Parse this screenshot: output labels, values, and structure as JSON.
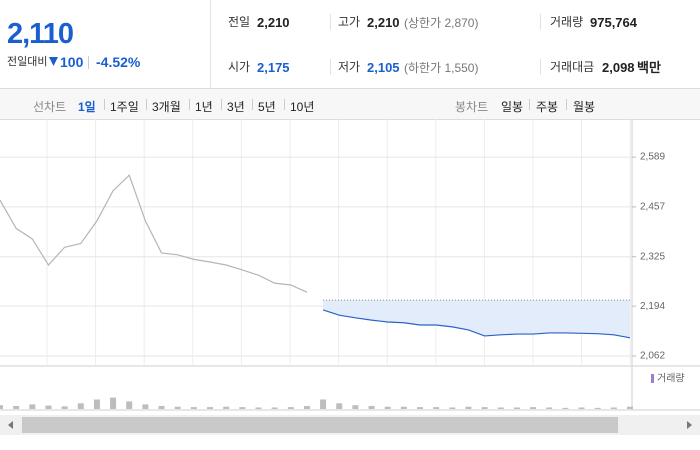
{
  "header": {
    "price": "2,110",
    "change_label": "전일대비",
    "change": "100",
    "change_rate": "-4.52%",
    "stats": [
      {
        "label": "전일",
        "value": "2,210"
      },
      {
        "label": "고가",
        "value": "2,210",
        "note": "(상한가 2,870)"
      },
      {
        "label": "거래량",
        "value": "975,764"
      },
      {
        "label": "시가",
        "value": "2,175"
      },
      {
        "label": "저가",
        "value": "2,105",
        "note": "(하한가 1,550)"
      },
      {
        "label": "거래대금",
        "value": "2,098",
        "unit": "백만"
      }
    ]
  },
  "tabs": {
    "line_label": "선차트",
    "line_periods": [
      "1일",
      "1주일",
      "3개월",
      "1년",
      "3년",
      "5년",
      "10년"
    ],
    "candle_label": "봉차트",
    "candle_periods": [
      "일봉",
      "주봉",
      "월봉"
    ]
  },
  "chart_data": {
    "type": "line",
    "ylim": [
      2038,
      2690
    ],
    "yticks": [
      {
        "value": 2589,
        "label": "2,589"
      },
      {
        "value": 2457,
        "label": "2,457"
      },
      {
        "value": 2325,
        "label": "2,325"
      },
      {
        "value": 2194,
        "label": "2,194"
      },
      {
        "value": 2062,
        "label": "2,062"
      }
    ],
    "grid": true,
    "baseline": 2210,
    "series": [
      {
        "color": "#b5b5b5",
        "values": [
          2475,
          2400,
          2372,
          2303,
          2350,
          2360,
          2420,
          2500,
          2541,
          2420,
          2335,
          2330,
          2318,
          2311,
          2303,
          2290,
          2276,
          2255,
          2250,
          2231,
          null,
          null,
          null,
          null,
          null,
          null,
          null,
          null,
          null,
          null,
          null,
          null,
          null,
          null,
          null,
          null,
          null,
          null,
          null,
          null
        ]
      },
      {
        "color": "#2a62c9",
        "fill": "#e3ecfa",
        "values": [
          null,
          null,
          null,
          null,
          null,
          null,
          null,
          null,
          null,
          null,
          null,
          null,
          null,
          null,
          null,
          null,
          null,
          null,
          null,
          null,
          2184,
          2170,
          2163,
          2157,
          2152,
          2150,
          2144,
          2144,
          2139,
          2131,
          2115,
          2118,
          2120,
          2120,
          2123,
          2123,
          2122,
          2121,
          2118,
          2110
        ]
      }
    ],
    "volume": {
      "name": "거래량",
      "color": "#bdbdbd",
      "legend_color": "#9b7fd0",
      "vlim": [
        0,
        100
      ],
      "values": [
        10,
        8,
        12,
        9,
        7,
        15,
        25,
        30,
        20,
        12,
        8,
        6,
        5,
        5,
        6,
        5,
        4,
        4,
        5,
        8,
        25,
        15,
        10,
        8,
        6,
        6,
        5,
        5,
        4,
        6,
        5,
        4,
        4,
        5,
        4,
        3,
        4,
        3,
        4,
        6
      ]
    }
  }
}
